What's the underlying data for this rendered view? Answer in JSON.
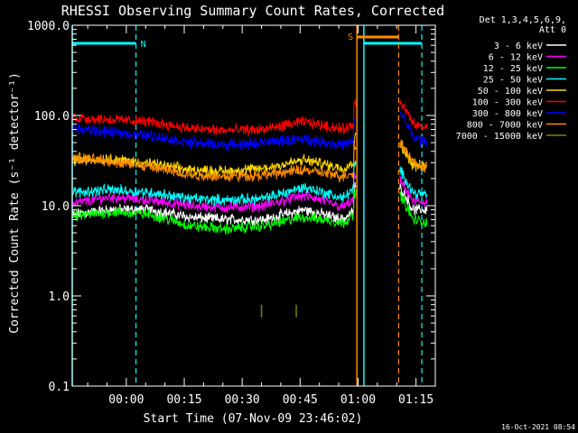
{
  "chart_data": {
    "type": "line",
    "title": "RHESSI Observing Summary Count Rates, Corrected",
    "xlabel": "Start Time (07-Nov-09 23:46:02)",
    "ylabel": "Corrected Count Rate (s⁻¹ detector⁻¹)",
    "yscale": "log",
    "ylim": [
      0.1,
      1000
    ],
    "xlim_minutes": [
      0,
      94
    ],
    "x_ticks": [
      {
        "label": "00:00",
        "minute": 14
      },
      {
        "label": "00:15",
        "minute": 29
      },
      {
        "label": "00:30",
        "minute": 44
      },
      {
        "label": "00:45",
        "minute": 59
      },
      {
        "label": "01:00",
        "minute": 74
      },
      {
        "label": "01:15",
        "minute": 89
      }
    ],
    "y_ticks": [
      {
        "label": "1000.0",
        "value": 1000
      },
      {
        "label": "100.0",
        "value": 100
      },
      {
        "label": "10.0",
        "value": 10
      },
      {
        "label": "1.0",
        "value": 1
      },
      {
        "label": "0.1",
        "value": 0.1
      }
    ],
    "legend_header": [
      "Det 1,3,4,5,6,9,",
      "Att 0"
    ],
    "legend_placement": "right",
    "series": [
      {
        "name": "3 - 6 keV",
        "color": "#ffffff",
        "x": [
          0,
          10,
          20,
          30,
          40,
          50,
          60,
          70,
          73.5,
          85,
          88,
          92
        ],
        "y": [
          8,
          9,
          9,
          7.5,
          7,
          7,
          9,
          7,
          9,
          11,
          9,
          9
        ]
      },
      {
        "name": "6 - 12 keV",
        "color": "#ff00ff",
        "x": [
          0,
          10,
          20,
          30,
          40,
          50,
          60,
          70,
          73.5,
          85,
          88,
          92
        ],
        "y": [
          10.5,
          12.5,
          11.5,
          10,
          9.5,
          10,
          13,
          9.5,
          12,
          13,
          11,
          11
        ]
      },
      {
        "name": "12 - 25 keV",
        "color": "#00ff00",
        "x": [
          0,
          10,
          20,
          30,
          40,
          50,
          60,
          70,
          73.5,
          85,
          88,
          92
        ],
        "y": [
          7.5,
          8.5,
          8,
          6,
          5.5,
          6,
          7.5,
          6.5,
          8,
          9,
          7,
          6.5
        ]
      },
      {
        "name": "25 - 50 keV",
        "color": "#00ffff",
        "x": [
          0,
          10,
          20,
          30,
          40,
          50,
          60,
          70,
          73.5,
          85,
          88,
          92
        ],
        "y": [
          14,
          15,
          14,
          12,
          11.5,
          12,
          16,
          12,
          16,
          17,
          14,
          13
        ]
      },
      {
        "name": "50 - 100 keV",
        "color": "#ffd700",
        "x": [
          0,
          10,
          20,
          30,
          40,
          50,
          60,
          70,
          73.5,
          85,
          88,
          92
        ],
        "y": [
          32,
          33,
          29,
          25,
          24,
          26,
          32,
          26,
          31,
          33,
          28,
          27
        ]
      },
      {
        "name": "100 - 300 keV",
        "color": "#ff0000",
        "x": [
          0,
          10,
          20,
          30,
          40,
          50,
          60,
          70,
          73.5,
          85,
          88,
          92
        ],
        "y": [
          95,
          90,
          85,
          72,
          68,
          70,
          85,
          70,
          80,
          100,
          80,
          72
        ]
      },
      {
        "name": "300 - 800 keV",
        "color": "#0000ff",
        "x": [
          0,
          10,
          20,
          30,
          40,
          50,
          60,
          70,
          73.5,
          85,
          88,
          92
        ],
        "y": [
          72,
          65,
          60,
          50,
          47,
          50,
          55,
          47,
          52,
          75,
          58,
          50
        ]
      },
      {
        "name": "800 - 7000 keV",
        "color": "#ff8c00",
        "x": [
          0,
          10,
          20,
          30,
          40,
          50,
          60,
          70,
          73.5,
          85,
          88,
          92
        ],
        "y": [
          34,
          31,
          27,
          22,
          21,
          22,
          25,
          21,
          24,
          36,
          30,
          26
        ]
      },
      {
        "name": "7000 - 15000 keV",
        "color": "#808000",
        "x": [
          49,
          58
        ],
        "y": [
          0.68,
          0.68
        ]
      }
    ],
    "annotations": [
      {
        "label": "N",
        "color": "#00ffff",
        "type": "night",
        "start_minute": 0,
        "end_minute": 16.5
      },
      {
        "label": "N",
        "color": "#00ffff",
        "type": "night",
        "start_minute": 75.5,
        "end_minute": 90.5
      },
      {
        "label": "S",
        "color": "#ff8c00",
        "type": "saa",
        "start_minute": 73.7,
        "end_minute": 84.5
      }
    ],
    "grid": false
  },
  "footer": {
    "timestamp": "16-Oct-2021 08:54"
  }
}
